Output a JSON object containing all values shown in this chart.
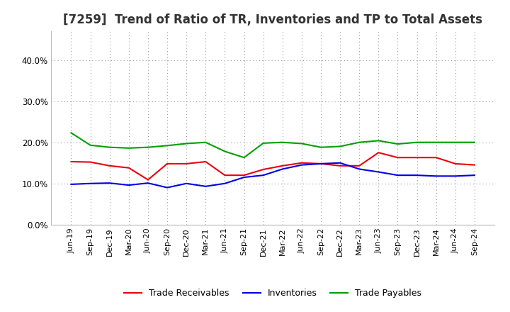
{
  "title": "[7259]  Trend of Ratio of TR, Inventories and TP to Total Assets",
  "x_labels": [
    "Jun-19",
    "Sep-19",
    "Dec-19",
    "Mar-20",
    "Jun-20",
    "Sep-20",
    "Dec-20",
    "Mar-21",
    "Jun-21",
    "Sep-21",
    "Dec-21",
    "Mar-22",
    "Jun-22",
    "Sep-22",
    "Dec-22",
    "Mar-23",
    "Jun-23",
    "Sep-23",
    "Dec-23",
    "Mar-24",
    "Jun-24",
    "Sep-24"
  ],
  "trade_receivables": [
    0.153,
    0.152,
    0.143,
    0.138,
    0.109,
    0.148,
    0.148,
    0.153,
    0.12,
    0.12,
    0.134,
    0.143,
    0.15,
    0.148,
    0.143,
    0.143,
    0.175,
    0.163,
    0.163,
    0.163,
    0.148,
    0.145
  ],
  "inventories": [
    0.098,
    0.1,
    0.101,
    0.096,
    0.101,
    0.09,
    0.1,
    0.093,
    0.1,
    0.115,
    0.12,
    0.135,
    0.145,
    0.148,
    0.15,
    0.135,
    0.128,
    0.12,
    0.12,
    0.118,
    0.118,
    0.12
  ],
  "trade_payables": [
    0.223,
    0.193,
    0.188,
    0.186,
    0.188,
    0.192,
    0.197,
    0.2,
    0.178,
    0.163,
    0.198,
    0.2,
    0.197,
    0.188,
    0.19,
    0.2,
    0.204,
    0.196,
    0.2,
    0.2,
    0.2,
    0.2
  ],
  "tr_color": "#e8000d",
  "inv_color": "#0000e8",
  "tp_color": "#00a000",
  "ylim": [
    0.0,
    0.47
  ],
  "yticks": [
    0.0,
    0.1,
    0.2,
    0.3,
    0.4
  ],
  "background_color": "#ffffff",
  "plot_bg_color": "#ffffff",
  "grid_color": "#999999",
  "title_fontsize": 12,
  "legend_labels": [
    "Trade Receivables",
    "Inventories",
    "Trade Payables"
  ]
}
